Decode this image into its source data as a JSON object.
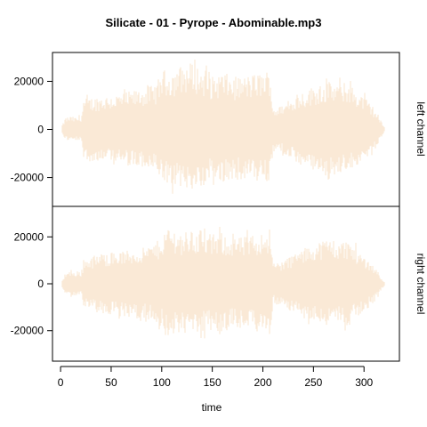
{
  "chart_data": {
    "type": "area",
    "title": "Silicate - 01 - Pyrope - Abominable.mp3",
    "xlabel": "time",
    "xlim": [
      -8,
      335
    ],
    "x_ticks": [
      0,
      50,
      100,
      150,
      200,
      250,
      300
    ],
    "waveform_color": "#FAE9D6",
    "panels": [
      {
        "name": "left channel",
        "ylim": [
          -32000,
          32000
        ],
        "y_ticks": [
          -20000,
          0,
          20000
        ],
        "envelope": {
          "x": [
            2,
            5,
            10,
            15,
            20,
            23,
            25,
            40,
            60,
            80,
            95,
            100,
            110,
            120,
            130,
            140,
            150,
            160,
            170,
            180,
            190,
            200,
            207,
            210,
            220,
            235,
            250,
            265,
            275,
            285,
            290,
            300,
            310,
            315,
            320
          ],
          "pos": [
            2000,
            5000,
            5500,
            5000,
            5500,
            12000,
            13000,
            14000,
            15000,
            17000,
            19000,
            25000,
            24000,
            27000,
            28000,
            25000,
            22000,
            24000,
            22000,
            22000,
            23000,
            24000,
            25000,
            9000,
            10000,
            15000,
            18000,
            20000,
            19000,
            20000,
            17000,
            14000,
            9000,
            5000,
            1000
          ],
          "neg": [
            2000,
            4500,
            5000,
            5000,
            5000,
            12000,
            13000,
            14000,
            15000,
            16000,
            18000,
            23000,
            24000,
            26000,
            25000,
            24000,
            21000,
            23000,
            21000,
            21000,
            22000,
            22000,
            24000,
            9000,
            10000,
            15000,
            17000,
            21000,
            18000,
            19000,
            16000,
            13000,
            9000,
            5000,
            1000
          ]
        }
      },
      {
        "name": "right channel",
        "ylim": [
          -33000,
          33000
        ],
        "y_ticks": [
          -20000,
          0,
          20000
        ],
        "envelope": {
          "x": [
            2,
            5,
            10,
            15,
            20,
            23,
            25,
            40,
            60,
            80,
            95,
            100,
            105,
            120,
            130,
            140,
            150,
            160,
            170,
            180,
            190,
            200,
            207,
            210,
            220,
            235,
            250,
            265,
            275,
            285,
            290,
            300,
            310,
            315,
            320
          ],
          "pos": [
            2000,
            5000,
            5500,
            5000,
            5000,
            10000,
            11000,
            13000,
            14000,
            15000,
            18000,
            20000,
            25000,
            22000,
            23000,
            22000,
            21000,
            22000,
            20000,
            20000,
            21000,
            22000,
            24000,
            9000,
            10000,
            14000,
            17000,
            20000,
            18000,
            19000,
            16000,
            12000,
            8000,
            4000,
            1000
          ],
          "neg": [
            2000,
            4500,
            5000,
            5000,
            5000,
            10000,
            11000,
            13000,
            14000,
            15000,
            17000,
            19000,
            23000,
            21000,
            22000,
            21000,
            20000,
            21000,
            19000,
            19000,
            20000,
            21000,
            22000,
            8500,
            10000,
            14000,
            16000,
            19000,
            17000,
            18000,
            15000,
            12000,
            8000,
            4000,
            1000
          ]
        }
      }
    ]
  }
}
